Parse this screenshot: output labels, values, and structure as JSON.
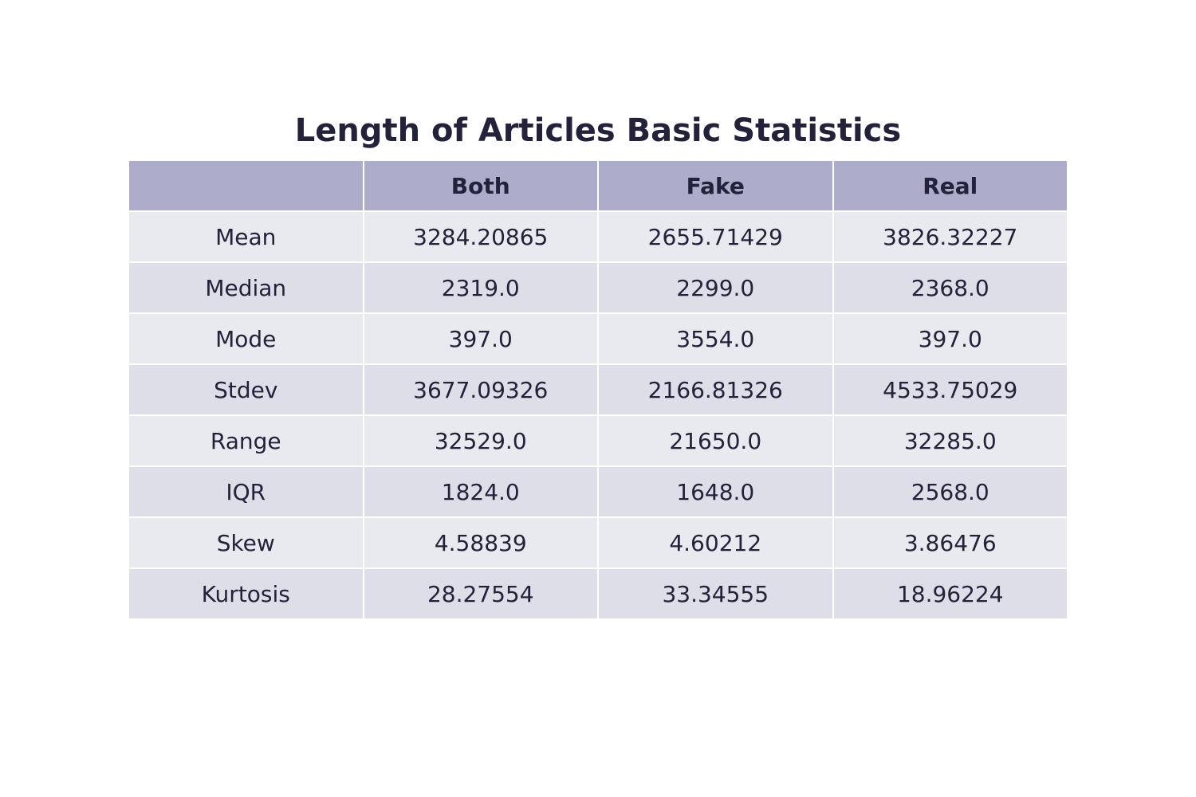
{
  "chart_data": {
    "type": "table",
    "title": "Length of Articles Basic Statistics",
    "columns": [
      "",
      "Both",
      "Fake",
      "Real"
    ],
    "rows": [
      [
        "Mean",
        "3284.20865",
        "2655.71429",
        "3826.32227"
      ],
      [
        "Median",
        "2319.0",
        "2299.0",
        "2368.0"
      ],
      [
        "Mode",
        "397.0",
        "3554.0",
        "397.0"
      ],
      [
        "Stdev",
        "3677.09326",
        "2166.81326",
        "4533.75029"
      ],
      [
        "Range",
        "32529.0",
        "21650.0",
        "32285.0"
      ],
      [
        "IQR",
        "1824.0",
        "1648.0",
        "2568.0"
      ],
      [
        "Skew",
        "4.58839",
        "4.60212",
        "3.86476"
      ],
      [
        "Kurtosis",
        "28.27554",
        "33.34555",
        "18.96224"
      ]
    ],
    "colors": {
      "header_fill": "#adadcb",
      "row_fill_odd": "#e9e9f0",
      "row_fill_even": "#dedee9",
      "text": "#23223a"
    }
  }
}
